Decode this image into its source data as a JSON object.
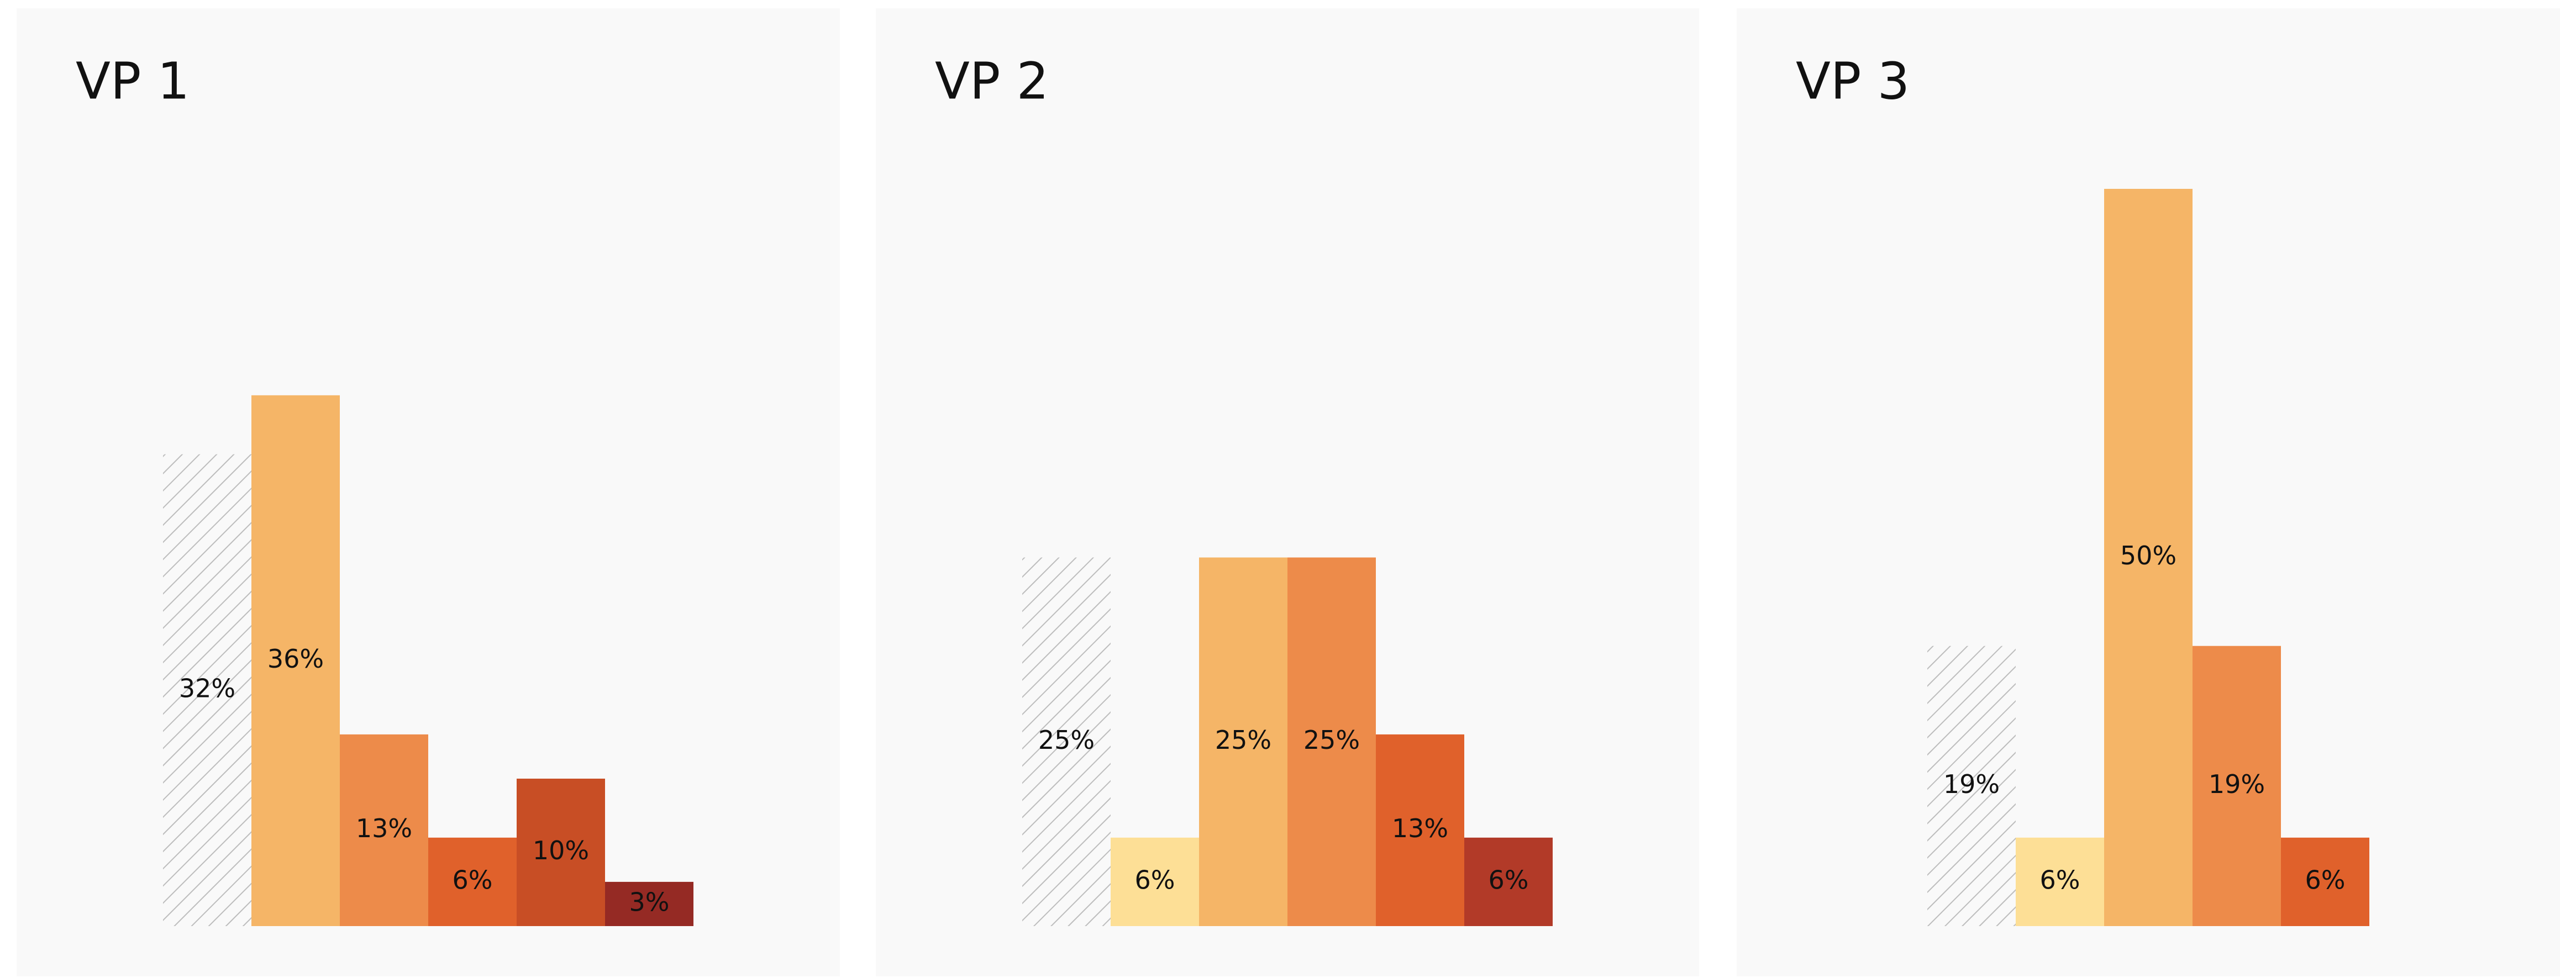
{
  "chart_data": [
    {
      "type": "bar",
      "title": "VP 1",
      "categories": [
        null,
        null,
        null,
        null,
        null,
        null
      ],
      "values": [
        32,
        36,
        13,
        6,
        10,
        3
      ],
      "value_labels": [
        "32%",
        "36%",
        "13%",
        "6%",
        "10%",
        "3%"
      ],
      "colors": [
        "hatch",
        "#f5b567",
        "#ed8b4a",
        "#e0612b",
        "#c84e25",
        "#952a24"
      ],
      "ylim": [
        0,
        50
      ]
    },
    {
      "type": "bar",
      "title": "VP 2",
      "categories": [
        null,
        null,
        null,
        null,
        null,
        null
      ],
      "values": [
        25,
        6,
        25,
        25,
        13,
        6
      ],
      "value_labels": [
        "25%",
        "6%",
        "25%",
        "25%",
        "13%",
        "6%"
      ],
      "colors": [
        "hatch",
        "#fddf96",
        "#f5b567",
        "#ed8b4a",
        "#e0612b",
        "#b23a28"
      ],
      "ylim": [
        0,
        50
      ]
    },
    {
      "type": "bar",
      "title": "VP 3",
      "categories": [
        null,
        null,
        null,
        null,
        null
      ],
      "values": [
        19,
        6,
        50,
        19,
        6
      ],
      "value_labels": [
        "19%",
        "6%",
        "50%",
        "19%",
        "6%"
      ],
      "colors": [
        "hatch",
        "#fddf96",
        "#f5b567",
        "#ed8b4a",
        "#e0612b"
      ],
      "ylim": [
        0,
        50
      ]
    }
  ]
}
